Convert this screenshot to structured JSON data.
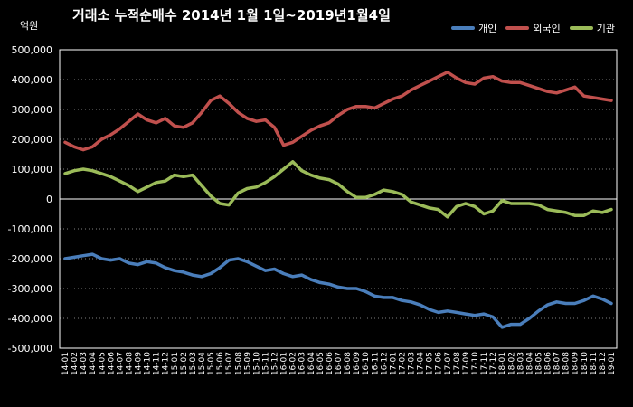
{
  "chart_data": {
    "type": "line",
    "title": "거래소 누적순매수 2014년 1월 1일~2019년1월4일",
    "unit_label": "억원",
    "ylim": [
      -500000,
      500000
    ],
    "yticks": [
      "500,000",
      "400,000",
      "300,000",
      "200,000",
      "100,000",
      "0",
      "-100,000",
      "-200,000",
      "-300,000",
      "-400,000",
      "-500,000"
    ],
    "ytick_values": [
      500000,
      400000,
      300000,
      200000,
      100000,
      0,
      -100000,
      -200000,
      -300000,
      -400000,
      -500000
    ],
    "grid": true,
    "legend_position": "top-right",
    "x": [
      "14-01",
      "14-02",
      "14-03",
      "14-04",
      "14-05",
      "14-06",
      "14-07",
      "14-08",
      "14-09",
      "14-10",
      "14-11",
      "14-12",
      "15-01",
      "15-02",
      "15-03",
      "15-04",
      "15-05",
      "15-06",
      "15-07",
      "15-08",
      "15-09",
      "15-10",
      "15-11",
      "15-12",
      "16-01",
      "16-02",
      "16-03",
      "16-04",
      "16-05",
      "16-06",
      "16-07",
      "16-08",
      "16-09",
      "16-10",
      "16-11",
      "16-12",
      "17-01",
      "17-02",
      "17-03",
      "17-04",
      "17-05",
      "17-06",
      "17-07",
      "17-08",
      "17-09",
      "17-10",
      "17-11",
      "17-12",
      "18-01",
      "18-02",
      "18-03",
      "18-04",
      "18-05",
      "18-06",
      "18-07",
      "18-08",
      "18-09",
      "18-10",
      "18-11",
      "18-12",
      "19-01"
    ],
    "series": [
      {
        "name": "개인",
        "color": "#4a7ebb",
        "values": [
          -200000,
          -195000,
          -190000,
          -185000,
          -200000,
          -205000,
          -200000,
          -215000,
          -220000,
          -210000,
          -215000,
          -230000,
          -240000,
          -245000,
          -255000,
          -260000,
          -250000,
          -230000,
          -205000,
          -200000,
          -210000,
          -225000,
          -240000,
          -235000,
          -250000,
          -260000,
          -255000,
          -270000,
          -280000,
          -285000,
          -295000,
          -300000,
          -300000,
          -310000,
          -325000,
          -330000,
          -330000,
          -340000,
          -345000,
          -355000,
          -370000,
          -380000,
          -375000,
          -380000,
          -385000,
          -390000,
          -385000,
          -395000,
          -430000,
          -420000,
          -420000,
          -400000,
          -375000,
          -355000,
          -345000,
          -350000,
          -350000,
          -340000,
          -325000,
          -335000,
          -350000
        ]
      },
      {
        "name": "외국인",
        "color": "#c0504d",
        "values": [
          190000,
          175000,
          165000,
          175000,
          200000,
          215000,
          235000,
          260000,
          285000,
          265000,
          255000,
          270000,
          245000,
          240000,
          255000,
          290000,
          330000,
          345000,
          320000,
          290000,
          270000,
          260000,
          265000,
          240000,
          180000,
          190000,
          210000,
          230000,
          245000,
          255000,
          280000,
          300000,
          310000,
          310000,
          305000,
          320000,
          335000,
          345000,
          365000,
          380000,
          395000,
          410000,
          425000,
          405000,
          390000,
          385000,
          405000,
          410000,
          395000,
          390000,
          390000,
          380000,
          370000,
          360000,
          355000,
          365000,
          375000,
          345000,
          340000,
          335000,
          330000
        ]
      },
      {
        "name": "기관",
        "color": "#9bbb59",
        "values": [
          85000,
          95000,
          100000,
          95000,
          85000,
          75000,
          60000,
          45000,
          25000,
          40000,
          55000,
          60000,
          80000,
          75000,
          80000,
          45000,
          10000,
          -15000,
          -20000,
          20000,
          35000,
          40000,
          55000,
          75000,
          100000,
          125000,
          95000,
          80000,
          70000,
          65000,
          50000,
          25000,
          5000,
          5000,
          15000,
          30000,
          25000,
          15000,
          -10000,
          -20000,
          -30000,
          -35000,
          -60000,
          -25000,
          -15000,
          -25000,
          -50000,
          -40000,
          -5000,
          -15000,
          -15000,
          -15000,
          -20000,
          -35000,
          -40000,
          -45000,
          -55000,
          -55000,
          -40000,
          -45000,
          -35000
        ]
      }
    ]
  }
}
